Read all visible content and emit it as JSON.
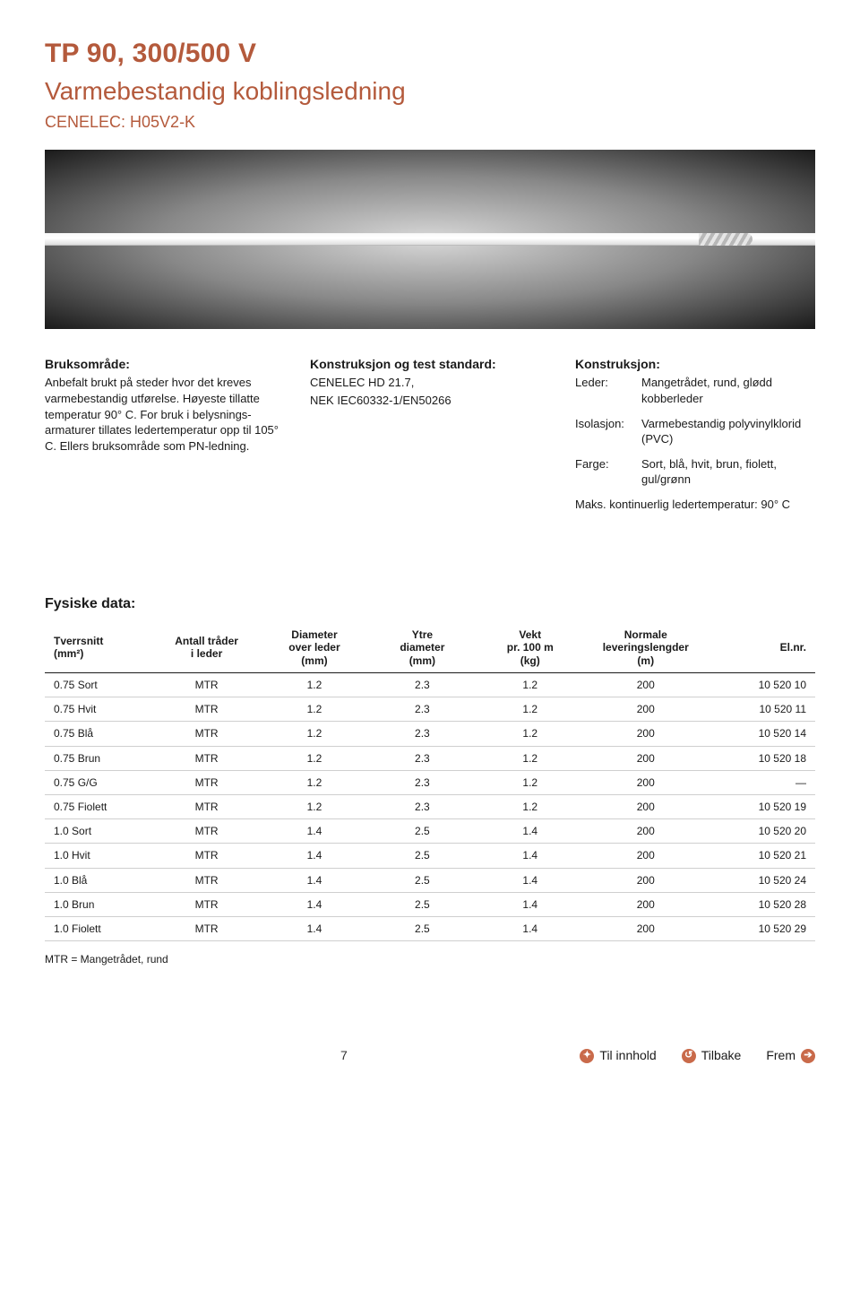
{
  "header": {
    "title": "TP 90, 300/500 V",
    "subtitle": "Varmebestandig koblingsledning",
    "cenelec": "CENELEC: H05V2-K"
  },
  "hero": {
    "bg_gradient": [
      "#d8d8d8",
      "#888888",
      "#1a1a1a"
    ],
    "cable_colors": [
      "#fafafa",
      "#ffffff",
      "#dedede"
    ]
  },
  "columns": {
    "bruk": {
      "heading": "Bruksområde:",
      "text": "Anbefalt brukt på steder hvor det kreves varmebestandig utførelse. Høyeste tillatte temperatur 90° C. For bruk i belysnings-armaturer tillates ledertemperatur opp til 105° C. Ellers bruksområde som PN-ledning."
    },
    "std": {
      "heading": "Konstruksjon og test standard:",
      "line1": "CENELEC HD 21.7,",
      "line2": "NEK IEC60332-1/EN50266"
    },
    "kon": {
      "heading": "Konstruksjon:",
      "rows": [
        {
          "key": "Leder:",
          "val": "Mangetrådet, rund, glødd kobberleder"
        },
        {
          "key": "Isolasjon:",
          "val": "Varmebestandig polyvinylklorid (PVC)"
        },
        {
          "key": "Farge:",
          "val": "Sort, blå, hvit, brun, fiolett, gul/grønn"
        }
      ],
      "maxtemp": "Maks. kontinuerlig ledertemperatur: 90° C"
    }
  },
  "table": {
    "title": "Fysiske data:",
    "columns": [
      {
        "h1": "Tverrsnitt",
        "h2": "(mm²)"
      },
      {
        "h1": "Antall tråder",
        "h2": "i leder"
      },
      {
        "h1": "Diameter",
        "h2": "over leder",
        "h3": "(mm)"
      },
      {
        "h1": "Ytre",
        "h2": "diameter",
        "h3": "(mm)"
      },
      {
        "h1": "Vekt",
        "h2": "pr. 100 m",
        "h3": "(kg)"
      },
      {
        "h1": "Normale",
        "h2": "leveringslengder",
        "h3": "(m)"
      },
      {
        "h1": "El.nr.",
        "h2": ""
      }
    ],
    "rows": [
      [
        "0.75 Sort",
        "MTR",
        "1.2",
        "2.3",
        "1.2",
        "200",
        "10 520 10"
      ],
      [
        "0.75 Hvit",
        "MTR",
        "1.2",
        "2.3",
        "1.2",
        "200",
        "10 520 11"
      ],
      [
        "0.75 Blå",
        "MTR",
        "1.2",
        "2.3",
        "1.2",
        "200",
        "10 520 14"
      ],
      [
        "0.75 Brun",
        "MTR",
        "1.2",
        "2.3",
        "1.2",
        "200",
        "10 520 18"
      ],
      [
        "0.75 G/G",
        "MTR",
        "1.2",
        "2.3",
        "1.2",
        "200",
        "—"
      ],
      [
        "0.75 Fiolett",
        "MTR",
        "1.2",
        "2.3",
        "1.2",
        "200",
        "10 520 19"
      ],
      [
        "1.0 Sort",
        "MTR",
        "1.4",
        "2.5",
        "1.4",
        "200",
        "10 520 20"
      ],
      [
        "1.0 Hvit",
        "MTR",
        "1.4",
        "2.5",
        "1.4",
        "200",
        "10 520 21"
      ],
      [
        "1.0 Blå",
        "MTR",
        "1.4",
        "2.5",
        "1.4",
        "200",
        "10 520 24"
      ],
      [
        "1.0 Brun",
        "MTR",
        "1.4",
        "2.5",
        "1.4",
        "200",
        "10 520 28"
      ],
      [
        "1.0 Fiolett",
        "MTR",
        "1.4",
        "2.5",
        "1.4",
        "200",
        "10 520 29"
      ]
    ],
    "footnote": "MTR = Mangetrådet, rund",
    "col_widths": [
      "14%",
      "14%",
      "14%",
      "14%",
      "14%",
      "16%",
      "14%"
    ]
  },
  "footer": {
    "page": "7",
    "links": {
      "innhold": "Til innhold",
      "tilbake": "Tilbake",
      "frem": "Frem"
    },
    "accent": "#c96a4a"
  }
}
